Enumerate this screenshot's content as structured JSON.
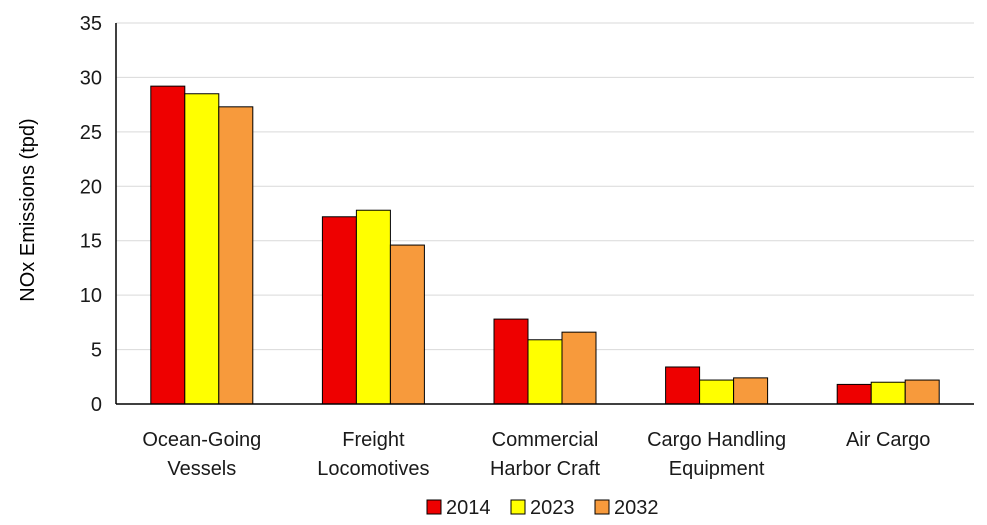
{
  "chart_data": {
    "type": "bar",
    "title": "",
    "xlabel": "",
    "ylabel": "NOx Emissions (tpd)",
    "ylim": [
      0,
      35
    ],
    "yticks": [
      0,
      5,
      10,
      15,
      20,
      25,
      30,
      35
    ],
    "grid": true,
    "legend_position": "bottom",
    "categories": [
      [
        "Ocean-Going",
        "Vessels"
      ],
      [
        "Freight",
        "Locomotives"
      ],
      [
        "Commercial",
        "Harbor Craft"
      ],
      [
        "Cargo Handling",
        "Equipment"
      ],
      [
        "Air Cargo"
      ]
    ],
    "series": [
      {
        "name": "2014",
        "color": "#ee0000",
        "values": [
          29.2,
          17.2,
          7.8,
          3.4,
          1.8
        ]
      },
      {
        "name": "2023",
        "color": "#ffff00",
        "values": [
          28.5,
          17.8,
          5.9,
          2.2,
          2.0
        ]
      },
      {
        "name": "2032",
        "color": "#f79a3c",
        "values": [
          27.3,
          14.6,
          6.6,
          2.4,
          2.2
        ]
      }
    ]
  }
}
